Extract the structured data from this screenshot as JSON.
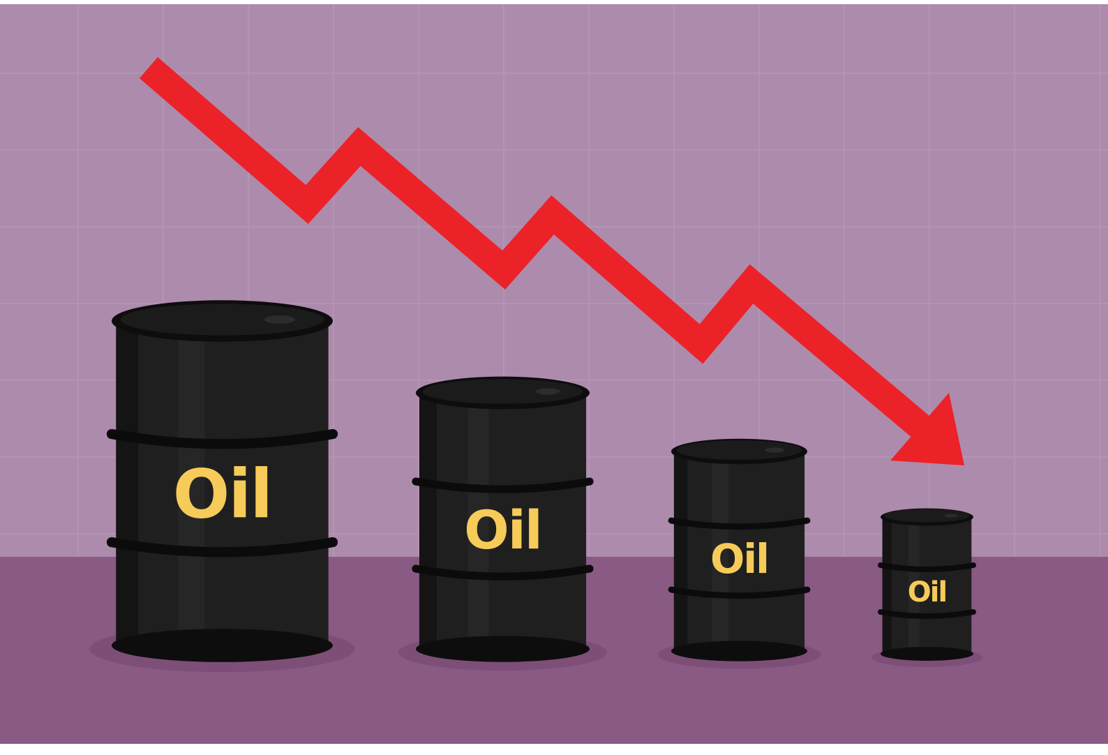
{
  "barrels": [
    {
      "label": "Oil"
    },
    {
      "label": "Oil"
    },
    {
      "label": "Oil"
    },
    {
      "label": "Oil"
    }
  ]
}
